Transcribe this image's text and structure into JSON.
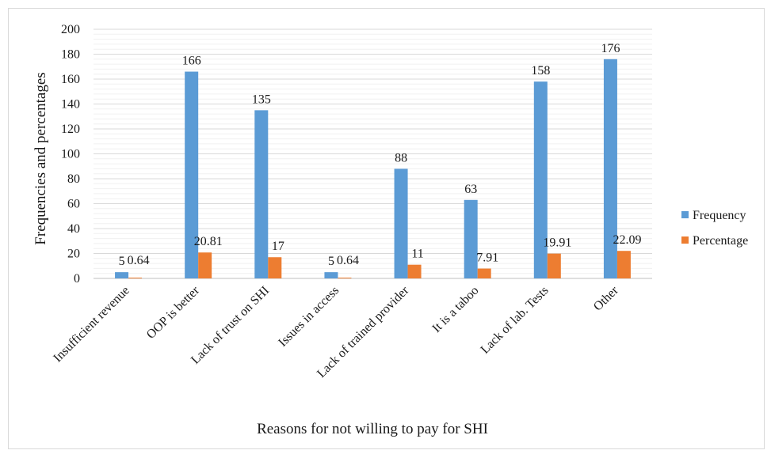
{
  "chart_data": {
    "type": "bar",
    "title": "",
    "xlabel": "Reasons for not willing to pay  for SHI",
    "ylabel": "Frequencies and percentages",
    "ylim": [
      0,
      200
    ],
    "ytick_step": 20,
    "minor_gridlines": true,
    "legend_position": "right",
    "categories": [
      "Insufficient revenue",
      "OOP is better",
      "Lack of trust on SHI",
      "Issues in access",
      "Lack of trained provider",
      "It is a taboo",
      "Lack of lab. Tests",
      "Other"
    ],
    "series": [
      {
        "name": "Frequency",
        "color": "#5b9bd5",
        "values": [
          5,
          166,
          135,
          5,
          88,
          63,
          158,
          176
        ],
        "labels": [
          "5",
          "166",
          "135",
          "5",
          "88",
          "63",
          "158",
          "176"
        ]
      },
      {
        "name": "Percentage",
        "color": "#ed7d31",
        "values": [
          0.64,
          20.81,
          17,
          0.64,
          11,
          7.91,
          19.91,
          22.09
        ],
        "labels": [
          "0.64",
          "20.81",
          "17",
          "0.64",
          "11",
          "7.91",
          "19.91",
          "22.09"
        ]
      }
    ]
  }
}
